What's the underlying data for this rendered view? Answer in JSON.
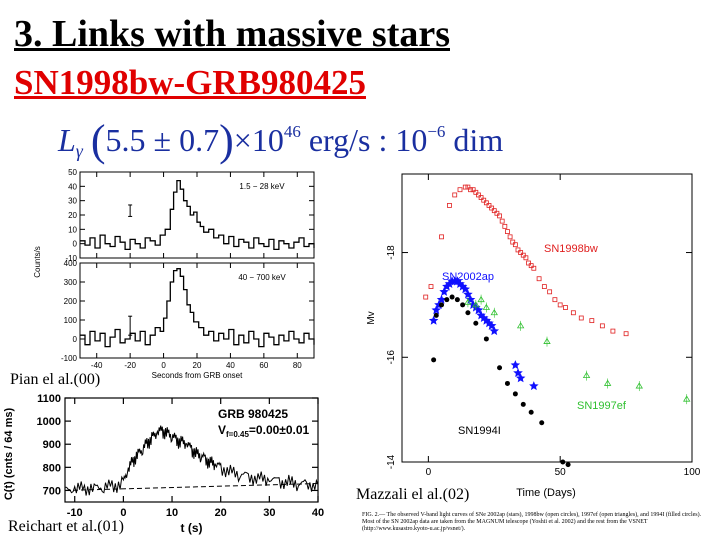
{
  "slide": {
    "title": "3. Links with massive stars",
    "subtitle": "SN1998bw-GRB980425",
    "formula": {
      "lhs": "L",
      "lhs_sub": "γ",
      "sym1": "",
      "open": "(",
      "value": "5.5 ± 0.7",
      "close": ")",
      "times": "×10",
      "exp": "46",
      "unit": " erg/s :",
      "sym2": "",
      "rhs": "10",
      "rhs_exp": "−6",
      "rhs_unit": " dim"
    }
  },
  "captions": {
    "pian": "Pian el al.(00)",
    "reichart": "Reichart et al.(01)",
    "mazzali": "Mazzali el al.(02)",
    "fig_caption": "FIG. 2.— The observed V-band light curves of SNe 2002ap (stars), 1998bw (open circles), 1997ef (open triangles), and 1994I (filled circles). Most of the SN 2002ap data are taken from the MAGNUM telescope (Yoshii et al. 2002) and the rest from the VSNET (http://www.kusastro.kyoto-u.ac.jp/vsnet/)."
  },
  "chart_data": [
    {
      "type": "line",
      "panel": "pian-upper",
      "annotation": "1.5 − 28 keV",
      "ylabel": "Counts/s",
      "xlim": [
        -50,
        90
      ],
      "ylim": [
        -10,
        50
      ],
      "xticks": [
        -40,
        -20,
        0,
        20,
        40,
        60,
        80
      ],
      "yticks": [
        -10,
        0,
        10,
        20,
        30,
        40,
        50
      ],
      "error_bar": {
        "x": -20,
        "y": 23,
        "err": 4
      },
      "x": [
        -50,
        -47,
        -44,
        -41,
        -38,
        -35,
        -32,
        -29,
        -26,
        -23,
        -20,
        -17,
        -14,
        -11,
        -8,
        -5,
        -2,
        1,
        4,
        6,
        8,
        10,
        12,
        14,
        16,
        18,
        20,
        22,
        24,
        27,
        30,
        33,
        36,
        39,
        42,
        45,
        48,
        51,
        54,
        57,
        60,
        63,
        66,
        69,
        72,
        75,
        78,
        81,
        84,
        87,
        90
      ],
      "y": [
        2,
        -1,
        4,
        -3,
        6,
        0,
        -2,
        5,
        1,
        -4,
        3,
        0,
        -3,
        4,
        2,
        -1,
        6,
        10,
        24,
        36,
        44,
        38,
        30,
        26,
        20,
        22,
        15,
        12,
        8,
        10,
        4,
        6,
        0,
        5,
        -2,
        3,
        1,
        -3,
        4,
        0,
        -2,
        3,
        -4,
        2,
        0,
        -3,
        1,
        4,
        -2,
        0,
        -3
      ]
    },
    {
      "type": "line",
      "panel": "pian-lower",
      "annotation": "40 − 700 keV",
      "xlabel": "Seconds from GRB onset",
      "xlim": [
        -50,
        90
      ],
      "ylim": [
        -100,
        400
      ],
      "xticks": [
        -40,
        -20,
        0,
        20,
        40,
        60,
        80
      ],
      "yticks": [
        -100,
        0,
        100,
        200,
        300,
        400
      ],
      "error_bar": {
        "x": -20,
        "y": 70,
        "err": 50
      },
      "x": [
        -50,
        -47,
        -44,
        -41,
        -38,
        -35,
        -32,
        -29,
        -26,
        -23,
        -20,
        -17,
        -14,
        -11,
        -8,
        -5,
        -2,
        0,
        2,
        4,
        6,
        8,
        10,
        12,
        14,
        16,
        18,
        21,
        24,
        27,
        30,
        33,
        36,
        39,
        42,
        45,
        48,
        51,
        54,
        57,
        60,
        63,
        66,
        69,
        72,
        75,
        78,
        81,
        84,
        87,
        90
      ],
      "y": [
        20,
        -30,
        40,
        -10,
        30,
        -40,
        10,
        50,
        -20,
        0,
        30,
        -10,
        40,
        -30,
        20,
        60,
        40,
        110,
        200,
        300,
        360,
        370,
        330,
        260,
        180,
        140,
        90,
        60,
        20,
        40,
        -10,
        30,
        0,
        50,
        -30,
        20,
        -20,
        40,
        0,
        -40,
        30,
        10,
        -30,
        20,
        -10,
        40,
        0,
        -20,
        30,
        0,
        -30
      ]
    },
    {
      "type": "line",
      "panel": "reichart",
      "annotation_title": "GRB 980425",
      "annotation_value": "V",
      "annotation_sub": "f=0.45",
      "annotation_rest": "=0.00±0.01",
      "ylabel": "C(t) (cnts / 64 ms)",
      "xlabel": "t (s)",
      "xlim": [
        -12,
        40
      ],
      "ylim": [
        650,
        1100
      ],
      "xticks": [
        -10,
        0,
        10,
        20,
        30,
        40
      ],
      "yticks": [
        700,
        800,
        900,
        1000,
        1100
      ],
      "x": [
        -12,
        -10,
        -8,
        -6,
        -4,
        -2,
        0,
        1,
        2,
        3,
        4,
        5,
        6,
        7,
        8,
        9,
        10,
        11,
        12,
        13,
        14,
        15,
        16,
        17,
        18,
        19,
        20,
        22,
        24,
        26,
        28,
        30,
        32,
        34,
        36,
        38,
        40
      ],
      "y": [
        700,
        705,
        710,
        712,
        715,
        720,
        735,
        790,
        830,
        860,
        880,
        910,
        930,
        950,
        960,
        950,
        935,
        920,
        910,
        900,
        880,
        860,
        850,
        835,
        820,
        810,
        800,
        780,
        770,
        760,
        752,
        745,
        740,
        735,
        730,
        728,
        725
      ],
      "baseline": {
        "x": [
          -12,
          40
        ],
        "y": [
          700,
          730
        ]
      }
    },
    {
      "type": "scatter",
      "panel": "mazzali",
      "xlabel": "Time (Days)",
      "ylabel": "Mv",
      "xlim": [
        -10,
        100
      ],
      "ylim": [
        -14,
        -19.5
      ],
      "xticks": [
        0,
        50,
        100
      ],
      "yticks": [
        -18,
        -16,
        -14
      ],
      "labels": {
        "sn1998bw": "SN1998bw",
        "sn2002ap": "SN2002ap",
        "sn1997ef": "SN1997ef",
        "sn1994i": "SN1994I"
      },
      "series": [
        {
          "name": "SN1998bw",
          "color": "#e02020",
          "marker": "open-square",
          "x": [
            8,
            10,
            12,
            14,
            15,
            16,
            17,
            18,
            19,
            20,
            21,
            22,
            23,
            24,
            25,
            26,
            27,
            28,
            29,
            30,
            31,
            32,
            33,
            34,
            35,
            36,
            37,
            38,
            39,
            40,
            42,
            44,
            46,
            48,
            50,
            52,
            55,
            58,
            62,
            66,
            70,
            75,
            -1,
            1,
            5
          ],
          "y": [
            -18.9,
            -19.1,
            -19.2,
            -19.25,
            -19.25,
            -19.2,
            -19.2,
            -19.15,
            -19.1,
            -19.05,
            -19.0,
            -18.95,
            -18.9,
            -18.85,
            -18.8,
            -18.75,
            -18.7,
            -18.6,
            -18.5,
            -18.4,
            -18.3,
            -18.2,
            -18.15,
            -18.05,
            -18.0,
            -17.95,
            -17.9,
            -17.8,
            -17.75,
            -17.7,
            -17.5,
            -17.35,
            -17.25,
            -17.1,
            -17.0,
            -16.95,
            -16.85,
            -16.75,
            -16.7,
            -16.6,
            -16.5,
            -16.45,
            -17.15,
            -17.35,
            -18.3
          ]
        },
        {
          "name": "SN2002ap",
          "color": "#1010ff",
          "marker": "star",
          "x": [
            2,
            3,
            4,
            5,
            6,
            7,
            8,
            9,
            10,
            11,
            12,
            13,
            14,
            15,
            16,
            17,
            18,
            19,
            20,
            21,
            22,
            23,
            24,
            25,
            33,
            34,
            35,
            40
          ],
          "y": [
            -16.7,
            -16.9,
            -17.0,
            -17.1,
            -17.25,
            -17.35,
            -17.4,
            -17.45,
            -17.45,
            -17.45,
            -17.4,
            -17.35,
            -17.3,
            -17.2,
            -17.1,
            -17.0,
            -16.95,
            -16.9,
            -16.8,
            -16.75,
            -16.7,
            -16.65,
            -16.6,
            -16.5,
            -15.85,
            -15.7,
            -15.6,
            -15.45
          ]
        },
        {
          "name": "SN1997ef",
          "color": "#30c030",
          "marker": "open-triangle",
          "x": [
            15,
            18,
            20,
            22,
            25,
            35,
            45,
            60,
            68,
            80,
            98
          ],
          "y": [
            -17.05,
            -17.0,
            -17.1,
            -16.95,
            -16.85,
            -16.6,
            -16.3,
            -15.65,
            -15.5,
            -15.45,
            -15.2
          ]
        },
        {
          "name": "SN1994I",
          "color": "#000000",
          "marker": "filled-circle",
          "x": [
            2,
            3,
            5,
            7,
            9,
            11,
            13,
            15,
            18,
            22,
            27,
            30,
            33,
            36,
            39,
            43,
            51,
            53
          ],
          "y": [
            -15.95,
            -16.8,
            -17.0,
            -17.1,
            -17.15,
            -17.1,
            -17.0,
            -16.85,
            -16.65,
            -16.35,
            -15.8,
            -15.5,
            -15.3,
            -15.1,
            -14.95,
            -14.75,
            -14.0,
            -13.95
          ]
        }
      ]
    }
  ]
}
